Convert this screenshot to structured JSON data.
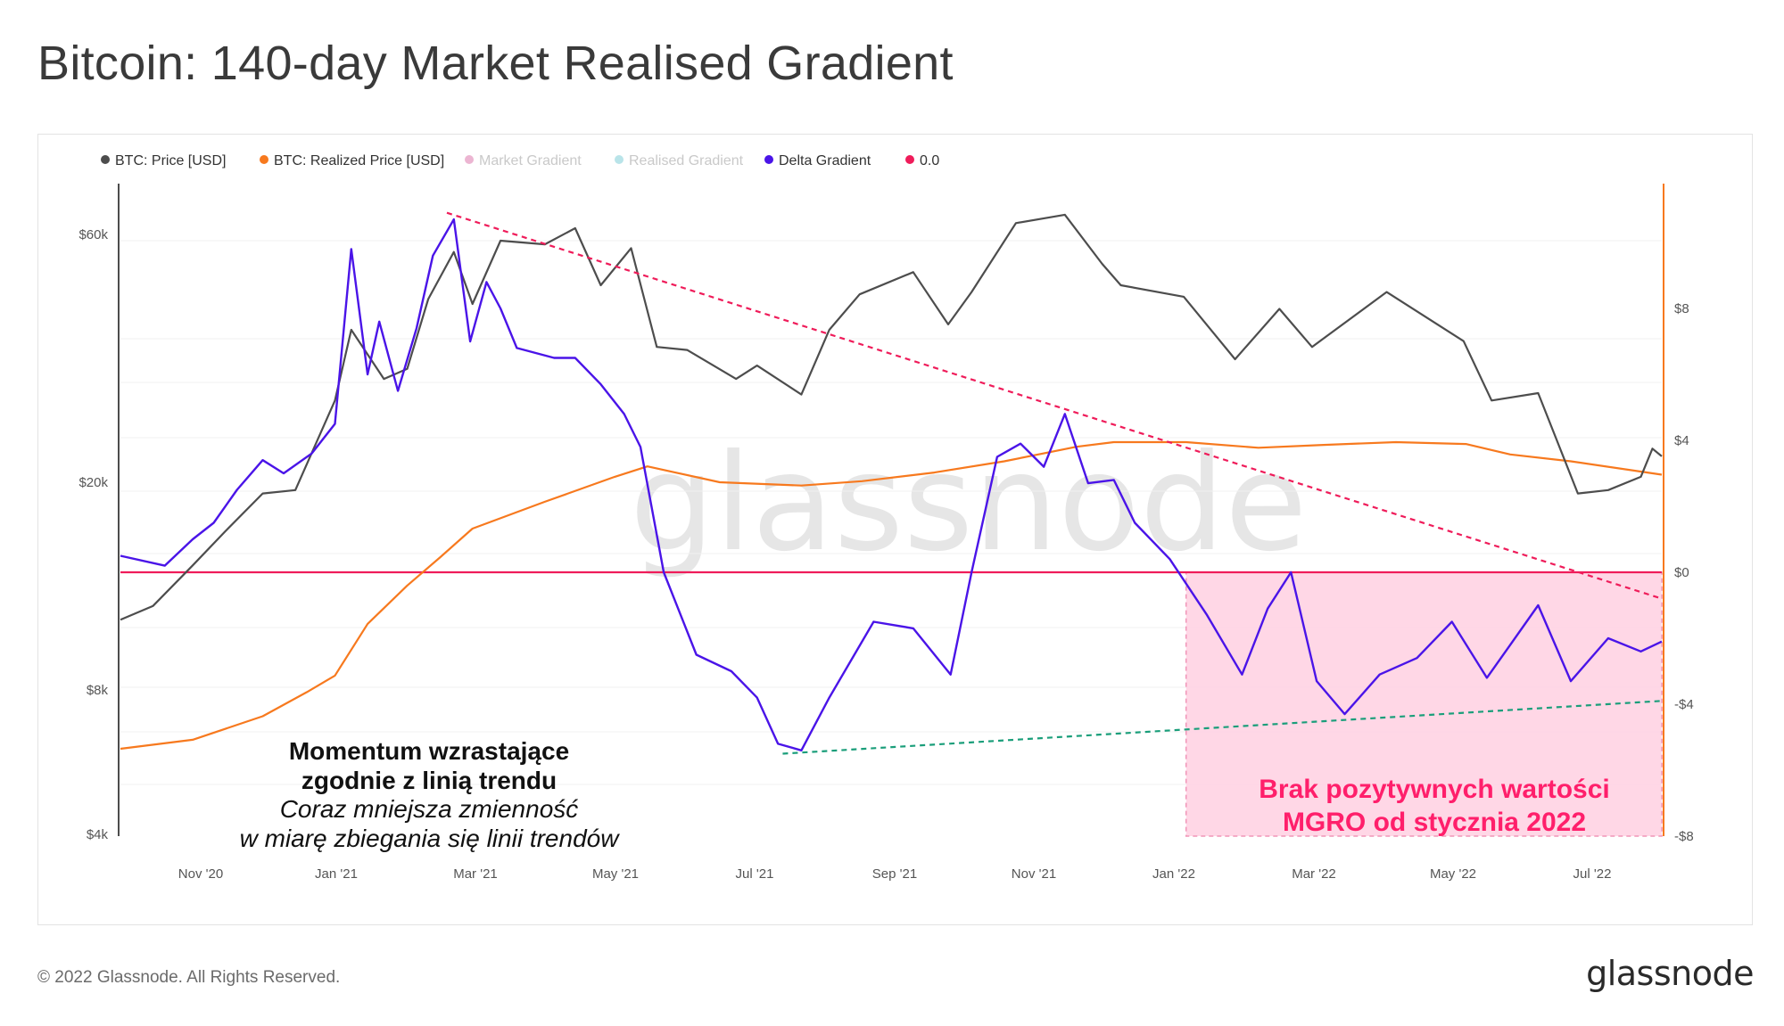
{
  "title": "Bitcoin: 140-day Market Realised Gradient",
  "footer": {
    "copyright": "© 2022 Glassnode. All Rights Reserved.",
    "logo": "glassnode"
  },
  "watermark": "glassnode",
  "colors": {
    "price": "#4d4d4d",
    "realized": "#f7791e",
    "market_gradient": "#d45c9c",
    "realised_gradient": "#63c4cf",
    "delta": "#4a14e8",
    "zero": "#ef1c5a",
    "trend_top": "#ef1c5a",
    "trend_bottom": "#1a9e7a",
    "shade": "#ffd3e4"
  },
  "legend": [
    {
      "label": "BTC: Price [USD]",
      "color": "#4d4d4d",
      "muted": false
    },
    {
      "label": "BTC: Realized Price [USD]",
      "color": "#f7791e",
      "muted": false
    },
    {
      "label": "Market Gradient",
      "color": "#d45c9c",
      "muted": true
    },
    {
      "label": "Realised Gradient",
      "color": "#63c4cf",
      "muted": true
    },
    {
      "label": "Delta Gradient",
      "color": "#4a14e8",
      "muted": false
    },
    {
      "label": "0.0",
      "color": "#ef1c5a",
      "muted": false
    }
  ],
  "annotations": {
    "left_bold_1": "Momentum wzrastające",
    "left_bold_2": "zgodnie z linią trendu",
    "left_ital_1": "Coraz mniejsza zmienność",
    "left_ital_2": "w miarę zbiegania się linii trendów",
    "right_1": "Brak pozytywnych wartości",
    "right_2": "MGRO od stycznia 2022"
  },
  "chart_data": {
    "type": "line",
    "x_ticks": [
      "Nov '20",
      "Jan '21",
      "Mar '21",
      "May '21",
      "Jul '21",
      "Sep '21",
      "Nov '21",
      "Jan '22",
      "Mar '22",
      "May '22",
      "Jul '22"
    ],
    "y_left_ticks": [
      "$60k",
      "$20k",
      "$8k",
      "$4k"
    ],
    "y_right_ticks": [
      "$8",
      "$4",
      "$0",
      "-$4",
      "-$8"
    ],
    "y_left_scale": "log",
    "y_right_range": [
      -8,
      8
    ],
    "series": [
      {
        "name": "BTC: Price [USD]",
        "points": [
          [
            "2020-10-01",
            10700
          ],
          [
            "2020-10-15",
            11400
          ],
          [
            "2020-11-01",
            13700
          ],
          [
            "2020-11-15",
            16000
          ],
          [
            "2020-12-01",
            19000
          ],
          [
            "2020-12-15",
            19300
          ],
          [
            "2021-01-01",
            29000
          ],
          [
            "2021-01-08",
            40000
          ],
          [
            "2021-01-22",
            32000
          ],
          [
            "2021-02-01",
            33500
          ],
          [
            "2021-02-10",
            46000
          ],
          [
            "2021-02-21",
            57000
          ],
          [
            "2021-03-01",
            45000
          ],
          [
            "2021-03-13",
            60000
          ],
          [
            "2021-04-01",
            59000
          ],
          [
            "2021-04-14",
            63500
          ],
          [
            "2021-04-25",
            49000
          ],
          [
            "2021-05-08",
            58000
          ],
          [
            "2021-05-19",
            37000
          ],
          [
            "2021-06-01",
            36500
          ],
          [
            "2021-06-22",
            32000
          ],
          [
            "2021-07-01",
            34000
          ],
          [
            "2021-07-20",
            29800
          ],
          [
            "2021-08-01",
            40000
          ],
          [
            "2021-08-14",
            47000
          ],
          [
            "2021-09-06",
            52000
          ],
          [
            "2021-09-21",
            41000
          ],
          [
            "2021-10-01",
            47500
          ],
          [
            "2021-10-20",
            65000
          ],
          [
            "2021-11-10",
            67500
          ],
          [
            "2021-11-26",
            54000
          ],
          [
            "2021-12-04",
            49000
          ],
          [
            "2021-12-31",
            46500
          ],
          [
            "2022-01-22",
            35000
          ],
          [
            "2022-02-10",
            44000
          ],
          [
            "2022-02-24",
            37000
          ],
          [
            "2022-03-28",
            47500
          ],
          [
            "2022-04-30",
            38000
          ],
          [
            "2022-05-12",
            29000
          ],
          [
            "2022-06-01",
            30000
          ],
          [
            "2022-06-18",
            19000
          ],
          [
            "2022-07-01",
            19300
          ],
          [
            "2022-07-15",
            20500
          ],
          [
            "2022-07-20",
            23300
          ],
          [
            "2022-07-24",
            22500
          ]
        ]
      },
      {
        "name": "BTC: Realized Price [USD]",
        "points": [
          [
            "2020-10-01",
            5950
          ],
          [
            "2020-11-01",
            6200
          ],
          [
            "2020-12-01",
            6900
          ],
          [
            "2020-12-20",
            7700
          ],
          [
            "2021-01-01",
            8300
          ],
          [
            "2021-01-15",
            10500
          ],
          [
            "2021-02-01",
            12500
          ],
          [
            "2021-02-15",
            14200
          ],
          [
            "2021-03-01",
            16200
          ],
          [
            "2021-04-01",
            18300
          ],
          [
            "2021-05-01",
            20500
          ],
          [
            "2021-05-15",
            21500
          ],
          [
            "2021-06-15",
            20000
          ],
          [
            "2021-07-20",
            19700
          ],
          [
            "2021-08-15",
            20100
          ],
          [
            "2021-09-15",
            20900
          ],
          [
            "2021-10-15",
            22000
          ],
          [
            "2021-11-15",
            23500
          ],
          [
            "2021-12-01",
            24000
          ],
          [
            "2022-01-01",
            24000
          ],
          [
            "2022-02-01",
            23400
          ],
          [
            "2022-03-01",
            23700
          ],
          [
            "2022-04-01",
            24000
          ],
          [
            "2022-05-01",
            23800
          ],
          [
            "2022-05-20",
            22700
          ],
          [
            "2022-06-15",
            22000
          ],
          [
            "2022-07-24",
            20700
          ]
        ]
      },
      {
        "name": "Delta Gradient",
        "points": [
          [
            "2020-10-01",
            0.5
          ],
          [
            "2020-10-20",
            0.2
          ],
          [
            "2020-11-01",
            1.0
          ],
          [
            "2020-11-10",
            1.5
          ],
          [
            "2020-11-20",
            2.5
          ],
          [
            "2020-12-01",
            3.4
          ],
          [
            "2020-12-10",
            3.0
          ],
          [
            "2020-12-22",
            3.6
          ],
          [
            "2021-01-01",
            4.5
          ],
          [
            "2021-01-08",
            9.8
          ],
          [
            "2021-01-15",
            6.0
          ],
          [
            "2021-01-20",
            7.6
          ],
          [
            "2021-01-28",
            5.5
          ],
          [
            "2021-02-05",
            7.4
          ],
          [
            "2021-02-12",
            9.6
          ],
          [
            "2021-02-21",
            10.7
          ],
          [
            "2021-02-28",
            7.0
          ],
          [
            "2021-03-07",
            8.8
          ],
          [
            "2021-03-13",
            8.0
          ],
          [
            "2021-03-20",
            6.8
          ],
          [
            "2021-04-05",
            6.5
          ],
          [
            "2021-04-14",
            6.5
          ],
          [
            "2021-04-25",
            5.7
          ],
          [
            "2021-05-05",
            4.8
          ],
          [
            "2021-05-12",
            3.8
          ],
          [
            "2021-05-22",
            0.0
          ],
          [
            "2021-06-05",
            -2.5
          ],
          [
            "2021-06-20",
            -3.0
          ],
          [
            "2021-07-01",
            -3.8
          ],
          [
            "2021-07-10",
            -5.2
          ],
          [
            "2021-07-20",
            -5.4
          ],
          [
            "2021-08-01",
            -3.8
          ],
          [
            "2021-08-20",
            -1.5
          ],
          [
            "2021-09-06",
            -1.7
          ],
          [
            "2021-09-22",
            -3.1
          ],
          [
            "2021-10-01",
            0.0
          ],
          [
            "2021-10-12",
            3.5
          ],
          [
            "2021-10-22",
            3.9
          ],
          [
            "2021-11-01",
            3.2
          ],
          [
            "2021-11-10",
            4.8
          ],
          [
            "2021-11-20",
            2.7
          ],
          [
            "2021-12-01",
            2.8
          ],
          [
            "2021-12-10",
            1.5
          ],
          [
            "2021-12-25",
            0.4
          ],
          [
            "2022-01-10",
            -1.3
          ],
          [
            "2022-01-25",
            -3.1
          ],
          [
            "2022-02-05",
            -1.1
          ],
          [
            "2022-02-15",
            0.0
          ],
          [
            "2022-02-26",
            -3.3
          ],
          [
            "2022-03-10",
            -4.3
          ],
          [
            "2022-03-25",
            -3.1
          ],
          [
            "2022-04-10",
            -2.6
          ],
          [
            "2022-04-25",
            -1.5
          ],
          [
            "2022-05-10",
            -3.2
          ],
          [
            "2022-05-20",
            -2.2
          ],
          [
            "2022-06-01",
            -1.0
          ],
          [
            "2022-06-15",
            -3.3
          ],
          [
            "2022-07-01",
            -2.0
          ],
          [
            "2022-07-15",
            -2.4
          ],
          [
            "2022-07-24",
            -2.1
          ]
        ]
      },
      {
        "name": "0.0",
        "points": [
          [
            "2020-10-01",
            0
          ],
          [
            "2022-07-24",
            0
          ]
        ]
      }
    ],
    "trendlines": [
      {
        "style": "dashed",
        "color": "#ef1c5a",
        "from": [
          "2021-02-18",
          10.9
        ],
        "to": [
          "2022-07-24",
          -0.8
        ]
      },
      {
        "style": "dashed",
        "color": "#1a9e7a",
        "from": [
          "2021-07-12",
          -5.5
        ],
        "to": [
          "2022-07-24",
          -3.9
        ]
      }
    ],
    "shaded_region": {
      "from": "2022-01-01",
      "to": "2022-07-24",
      "y_range": [
        -8,
        0
      ]
    },
    "grid": true,
    "legend_position": "top-left"
  }
}
